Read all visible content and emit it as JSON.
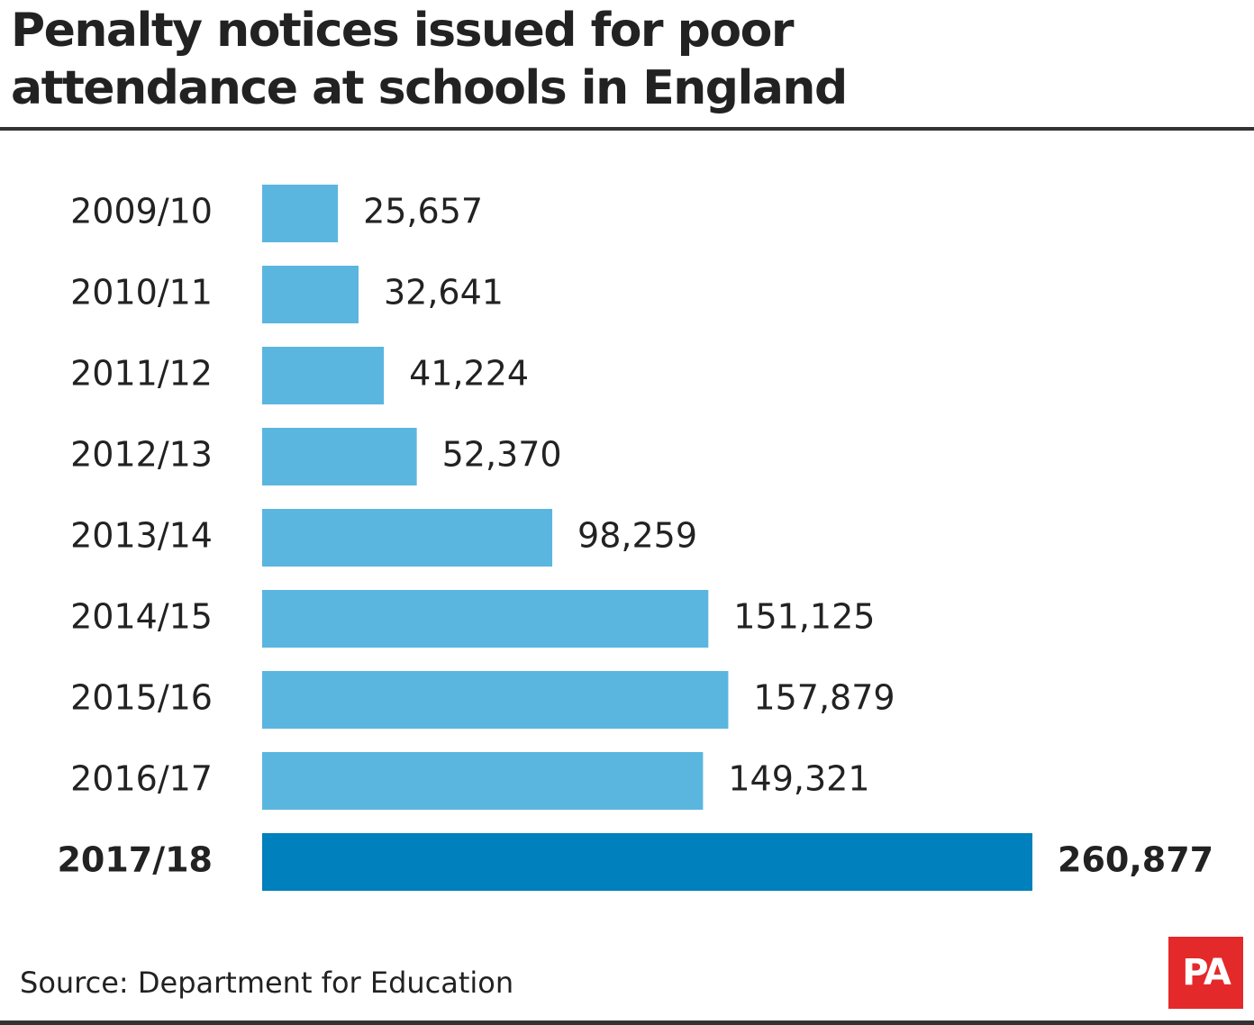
{
  "chart_data": {
    "type": "bar",
    "title": "Penalty notices issued for poor attendance at schools in England",
    "categories": [
      "2009/10",
      "2010/11",
      "2011/12",
      "2012/13",
      "2013/14",
      "2014/15",
      "2015/16",
      "2016/17",
      "2017/18"
    ],
    "values": [
      25657,
      32641,
      41224,
      52370,
      98259,
      151125,
      157879,
      149321,
      260877
    ],
    "value_labels": [
      "25,657",
      "32,641",
      "41,224",
      "52,370",
      "98,259",
      "151,125",
      "157,879",
      "149,321",
      "260,877"
    ],
    "color": "#5ab6df",
    "colors": [
      "#5ab6df",
      "#5ab6df",
      "#5ab6df",
      "#5ab6df",
      "#5ab6df",
      "#5ab6df",
      "#5ab6df",
      "#5ab6df",
      "#0080bc"
    ],
    "source": "Source: Department for Education",
    "logo": "PA"
  }
}
